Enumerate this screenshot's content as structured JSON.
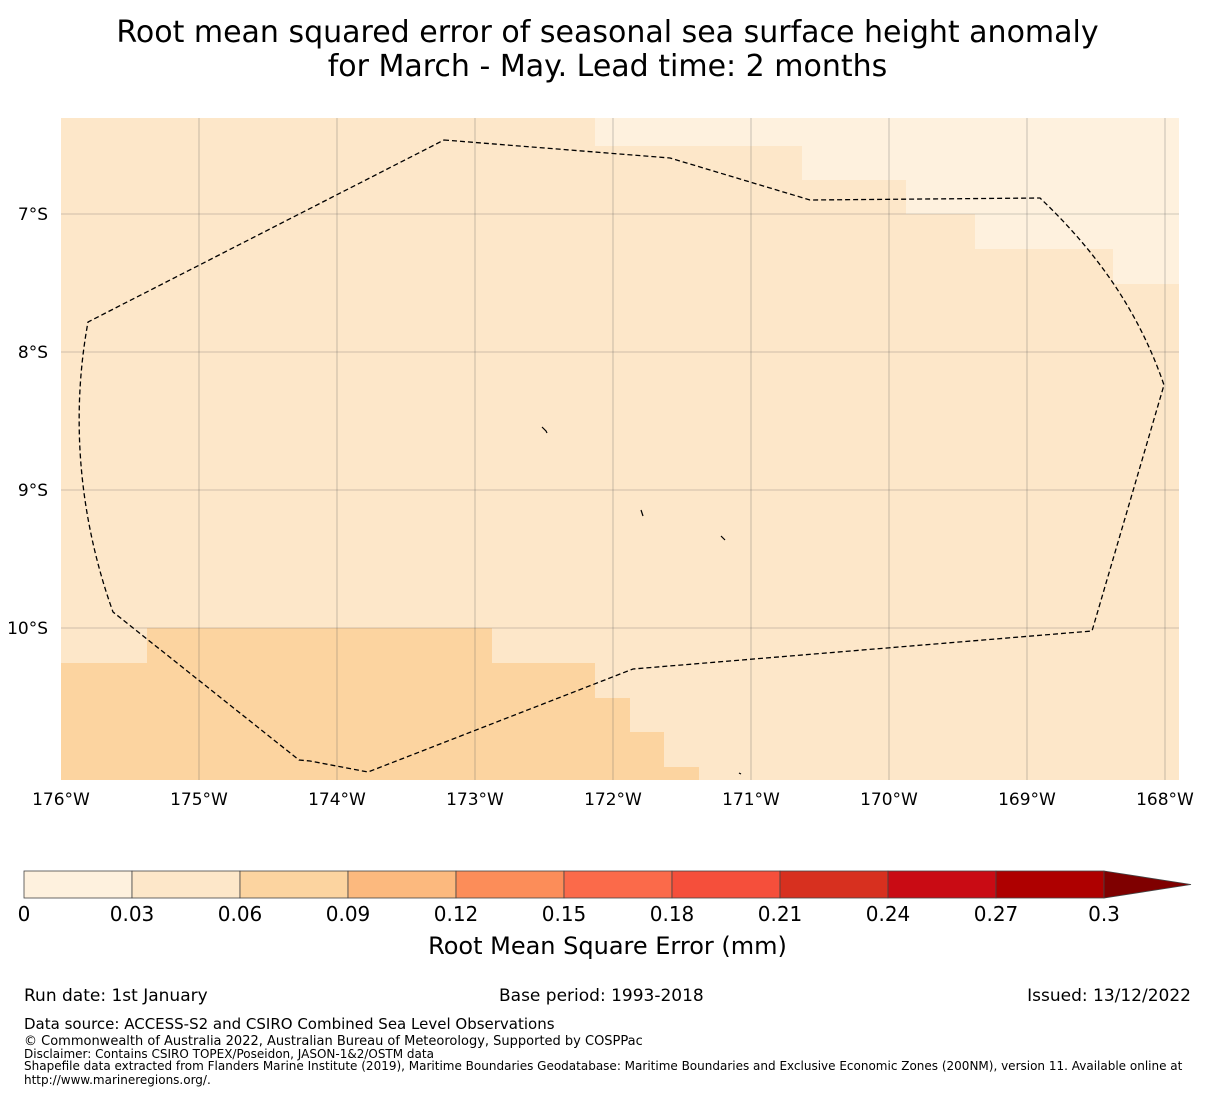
{
  "title": {
    "line1": "Root mean squared error of seasonal sea surface height anomaly",
    "line2": "for March - May. Lead time: 2 months"
  },
  "map": {
    "lat_labels": [
      "7°S",
      "8°S",
      "9°S",
      "10°S"
    ],
    "lon_labels": [
      "176°W",
      "175°W",
      "174°W",
      "173°W",
      "172°W",
      "171°W",
      "170°W",
      "169°W",
      "168°W"
    ],
    "lat_range": [
      -11.15,
      -6.3
    ],
    "lon_range": [
      -176,
      -167.9
    ],
    "eez_boundary": "dashed black line",
    "fill_colors": {
      "lightest": "#fef1de",
      "light": "#fde7c9",
      "medium": "#fcd4a0"
    }
  },
  "colorbar": {
    "title": "Root Mean Square Error (mm)",
    "ticks": [
      "0",
      "0.03",
      "0.06",
      "0.09",
      "0.12",
      "0.15",
      "0.18",
      "0.21",
      "0.24",
      "0.27",
      "0.3"
    ],
    "colors": [
      "#fef1de",
      "#fde7c9",
      "#fcd4a0",
      "#fcb97e",
      "#fc8d59",
      "#fb6a4a",
      "#f54f3b",
      "#d7301f",
      "#c90b14",
      "#ae0000",
      "#7f0000"
    ],
    "extend": "max"
  },
  "footer": {
    "run_date": "Run date: 1st January",
    "base_period": "Base period: 1993-2018",
    "issued": "Issued: 13/12/2022",
    "data_source": "Data source: ACCESS-S2 and CSIRO Combined Sea Level Observations",
    "copyright": "© Commonwealth of Australia 2022, Australian Bureau of Meteorology, Supported by COSPPac",
    "disclaimer": "Disclaimer: Contains CSIRO TOPEX/Poseidon, JASON-1&2/OSTM data",
    "shapefile1": "Shapefile data extracted from Flanders Marine Institute (2019), Maritime Boundaries Geodatabase: Maritime Boundaries and Exclusive Economic Zones (200NM), version 11. Available online at",
    "shapefile2": "http://www.marineregions.org/."
  }
}
